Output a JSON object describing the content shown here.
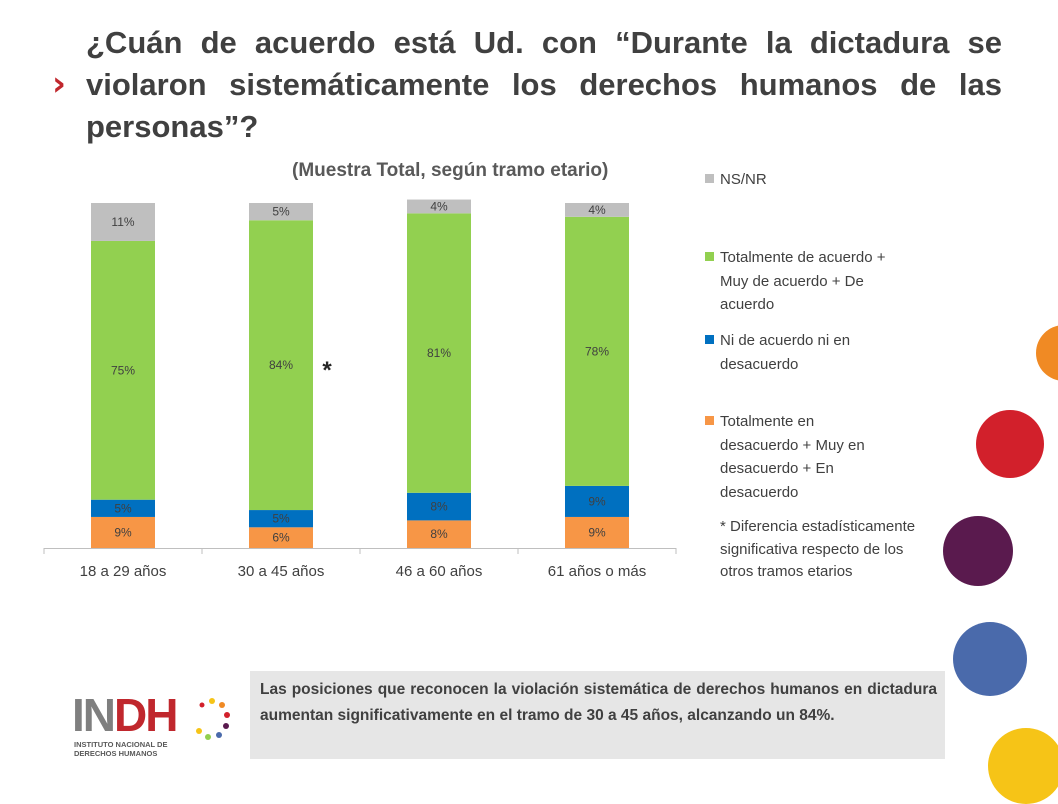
{
  "header": {
    "bullet": "›",
    "title": "¿Cuán de acuerdo está Ud. con “Durante la dictadura se violaron sistemáticamente los derechos humanos de las personas”?"
  },
  "chart_data": {
    "type": "bar",
    "stacked": true,
    "subtitle": "(Muestra Total, según tramo etario)",
    "categories": [
      "18 a 29 años",
      "30 a 45 años",
      "46 a 60 años",
      "61 años o más"
    ],
    "series": [
      {
        "name": "Totalmente en desacuerdo + Muy en desacuerdo + En desacuerdo",
        "color": "#f79646",
        "values": [
          9,
          6,
          8,
          9
        ]
      },
      {
        "name": "Ni de acuerdo ni en desacuerdo",
        "color": "#0070c0",
        "values": [
          5,
          5,
          8,
          9
        ]
      },
      {
        "name": "Totalmente de acuerdo + Muy de acuerdo + De acuerdo",
        "color": "#92d050",
        "values": [
          75,
          84,
          81,
          78
        ]
      },
      {
        "name": "NS/NR",
        "color": "#bfbfbf",
        "values": [
          11,
          5,
          4,
          4
        ]
      }
    ],
    "ylim": [
      0,
      100
    ],
    "significance_marker": "*",
    "significance_category": "30 a 45 años",
    "grid": false,
    "legend_position": "right"
  },
  "legend": {
    "items": [
      {
        "label": "NS/NR",
        "color": "#bfbfbf"
      },
      {
        "label": "Totalmente de acuerdo + Muy de acuerdo + De acuerdo",
        "color": "#92d050"
      },
      {
        "label": "Ni de acuerdo ni en desacuerdo",
        "color": "#0070c0"
      },
      {
        "label": "Totalmente en desacuerdo + Muy en desacuerdo + En desacuerdo",
        "color": "#f79646"
      }
    ],
    "footnote": "* Diferencia estadísticamente significativa respecto de los otros tramos etarios"
  },
  "logo": {
    "name": "INDH",
    "subtitle": "INSTITUTO NACIONAL DE DERECHOS HUMANOS"
  },
  "conclusion": "Las posiciones que reconocen la violación sistemática de derechos humanos en dictadura aumentan significativamente en el tramo de 30 a 45 años, alcanzando un 84%.",
  "decor_colors": [
    "#f08a24",
    "#d2202b",
    "#5a1a4e",
    "#4a6aab",
    "#f6c417"
  ]
}
